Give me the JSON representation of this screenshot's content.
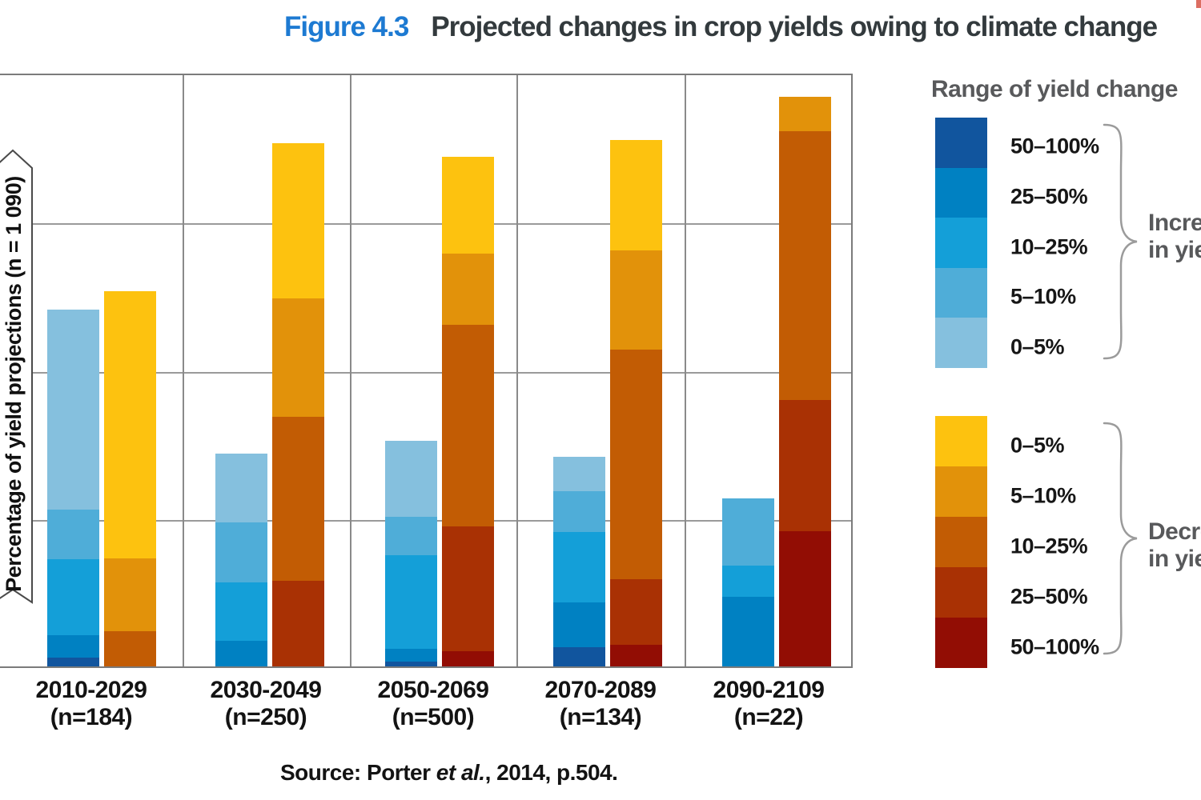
{
  "chart_data": {
    "type": "bar",
    "stacked": true,
    "figure_label": "Figure 4.3",
    "title": "Projected changes in crop yields owing to climate change",
    "ylabel": "Percentage of yield projections (n = 1 090)",
    "xlabel": "",
    "ylim": [
      0,
      80
    ],
    "gridlines_pct": [
      20,
      40,
      60
    ],
    "grid": true,
    "legend_position": "right",
    "categories": [
      {
        "period": "2010-2029",
        "n_label": "(n=184)"
      },
      {
        "period": "2030-2049",
        "n_label": "(n=250)"
      },
      {
        "period": "2050-2069",
        "n_label": "(n=500)"
      },
      {
        "period": "2070-2089",
        "n_label": "(n=134)"
      },
      {
        "period": "2090-2109",
        "n_label": "(n=22)"
      }
    ],
    "series": [
      {
        "name": "Increase in yield",
        "side": "increase",
        "bars": [
          {
            "segments": [
              {
                "range": "50–100%",
                "value": 1.2
              },
              {
                "range": "25–50%",
                "value": 3.0
              },
              {
                "range": "10–25%",
                "value": 10.3
              },
              {
                "range": "5–10%",
                "value": 6.7
              },
              {
                "range": "0–5%",
                "value": 26.9
              }
            ]
          },
          {
            "segments": [
              {
                "range": "25–50%",
                "value": 3.5
              },
              {
                "range": "10–25%",
                "value": 7.8
              },
              {
                "range": "5–10%",
                "value": 8.1
              },
              {
                "range": "0–5%",
                "value": 9.3
              }
            ]
          },
          {
            "segments": [
              {
                "range": "50–100%",
                "value": 0.7
              },
              {
                "range": "25–50%",
                "value": 1.7
              },
              {
                "range": "10–25%",
                "value": 12.6
              },
              {
                "range": "5–10%",
                "value": 5.2
              },
              {
                "range": "0–5%",
                "value": 10.2
              }
            ]
          },
          {
            "segments": [
              {
                "range": "50–100%",
                "value": 2.6
              },
              {
                "range": "25–50%",
                "value": 6.0
              },
              {
                "range": "10–25%",
                "value": 9.5
              },
              {
                "range": "5–10%",
                "value": 5.5
              },
              {
                "range": "0–5%",
                "value": 4.6
              }
            ]
          },
          {
            "segments": [
              {
                "range": "25–50%",
                "value": 9.4
              },
              {
                "range": "10–25%",
                "value": 4.2
              },
              {
                "range": "5–10%",
                "value": 9.0
              }
            ]
          }
        ]
      },
      {
        "name": "Decrease in yield",
        "side": "decrease",
        "bars": [
          {
            "segments": [
              {
                "range": "10–25%",
                "value": 4.7
              },
              {
                "range": "5–10%",
                "value": 9.9
              },
              {
                "range": "0–5%",
                "value": 36.0
              }
            ]
          },
          {
            "segments": [
              {
                "range": "25–50%",
                "value": 11.6
              },
              {
                "range": "10–25%",
                "value": 22.1
              },
              {
                "range": "5–10%",
                "value": 16.0
              },
              {
                "range": "0–5%",
                "value": 20.9
              }
            ]
          },
          {
            "segments": [
              {
                "range": "50–100%",
                "value": 2.0
              },
              {
                "range": "25–50%",
                "value": 16.9
              },
              {
                "range": "10–25%",
                "value": 27.2
              },
              {
                "range": "5–10%",
                "value": 9.6
              },
              {
                "range": "0–5%",
                "value": 13.0
              }
            ]
          },
          {
            "segments": [
              {
                "range": "50–100%",
                "value": 2.9
              },
              {
                "range": "25–50%",
                "value": 8.9
              },
              {
                "range": "10–25%",
                "value": 31.0
              },
              {
                "range": "5–10%",
                "value": 13.3
              },
              {
                "range": "0–5%",
                "value": 14.9
              }
            ]
          },
          {
            "segments": [
              {
                "range": "50–100%",
                "value": 18.2
              },
              {
                "range": "25–50%",
                "value": 17.8
              },
              {
                "range": "10–25%",
                "value": 36.2
              },
              {
                "range": "5–10%",
                "value": 4.6
              }
            ]
          }
        ]
      }
    ],
    "source": {
      "prefix": "Source: Porter ",
      "italic": "et al.",
      "suffix": ", 2014, p.504."
    }
  },
  "colors": {
    "increase": {
      "0–5%": "#85c0de",
      "5–10%": "#4fadd8",
      "10–25%": "#149fd8",
      "25–50%": "#0081c2",
      "50–100%": "#11559e"
    },
    "decrease": {
      "0–5%": "#fdc20f",
      "5–10%": "#e2920a",
      "10–25%": "#c25c04",
      "25–50%": "#a93104",
      "50–100%": "#920d04"
    },
    "title_accent": "#1d7ad2",
    "title_text": "#333a3d",
    "legend_text": "#58595b"
  },
  "legend": {
    "heading": "Range of yield change",
    "increase": {
      "items": [
        "50–100%",
        "25–50%",
        "10–25%",
        "5–10%",
        "0–5%"
      ],
      "label_lines": [
        "Increase",
        "in yield"
      ]
    },
    "decrease": {
      "items": [
        "0–5%",
        "5–10%",
        "10–25%",
        "25–50%",
        "50–100%"
      ],
      "label_lines": [
        "Decrease",
        "in yield"
      ]
    }
  }
}
